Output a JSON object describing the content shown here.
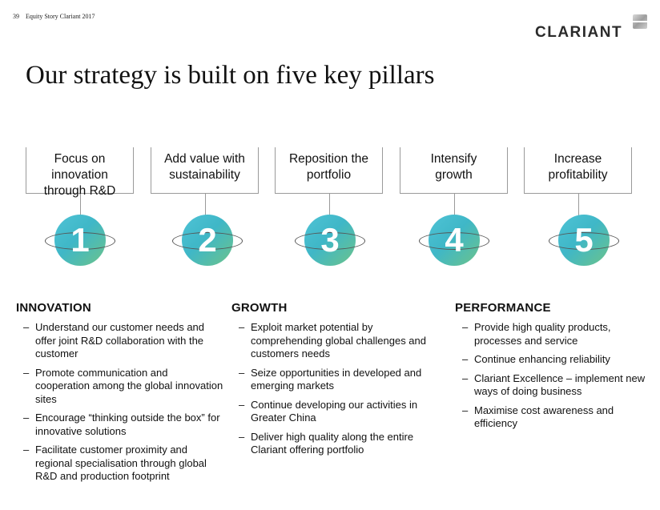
{
  "header": {
    "page_number": "39",
    "doc_title": "Equity Story Clariant 2017",
    "logo_text": "CLARIANT"
  },
  "title": "Our strategy is built on five key pillars",
  "pillars": [
    {
      "number": "1",
      "line1": "Focus on innovation",
      "line2": "through R&D"
    },
    {
      "number": "2",
      "line1": "Add value with",
      "line2": "sustainability"
    },
    {
      "number": "3",
      "line1": "Reposition the",
      "line2": "portfolio"
    },
    {
      "number": "4",
      "line1": "Intensify",
      "line2": "growth"
    },
    {
      "number": "5",
      "line1": "Increase",
      "line2": "profitability"
    }
  ],
  "columns": [
    {
      "heading": "INNOVATION",
      "items": [
        "Understand our customer needs and offer joint R&D collaboration with the customer",
        "Promote communication and cooperation among the global innovation sites",
        "Encourage “thinking outside the box” for innovative solutions",
        "Facilitate customer proximity and regional specialisation through global R&D and production footprint"
      ]
    },
    {
      "heading": "GROWTH",
      "items": [
        "Exploit market potential by comprehending global challenges and customers needs",
        "Seize opportunities in developed and emerging markets",
        "Continue developing our activities in Greater China",
        "Deliver high quality along the entire Clariant offering portfolio"
      ]
    },
    {
      "heading": "PERFORMANCE",
      "items": [
        "Provide high quality products, processes and service",
        "Continue enhancing reliability",
        "Clariant Excellence – implement new ways of doing business",
        "Maximise cost awareness and efficiency"
      ]
    }
  ],
  "bullet_char": "–",
  "colors": {
    "badge_teal": "#3fb7c7",
    "badge_green": "#6cc38a"
  }
}
